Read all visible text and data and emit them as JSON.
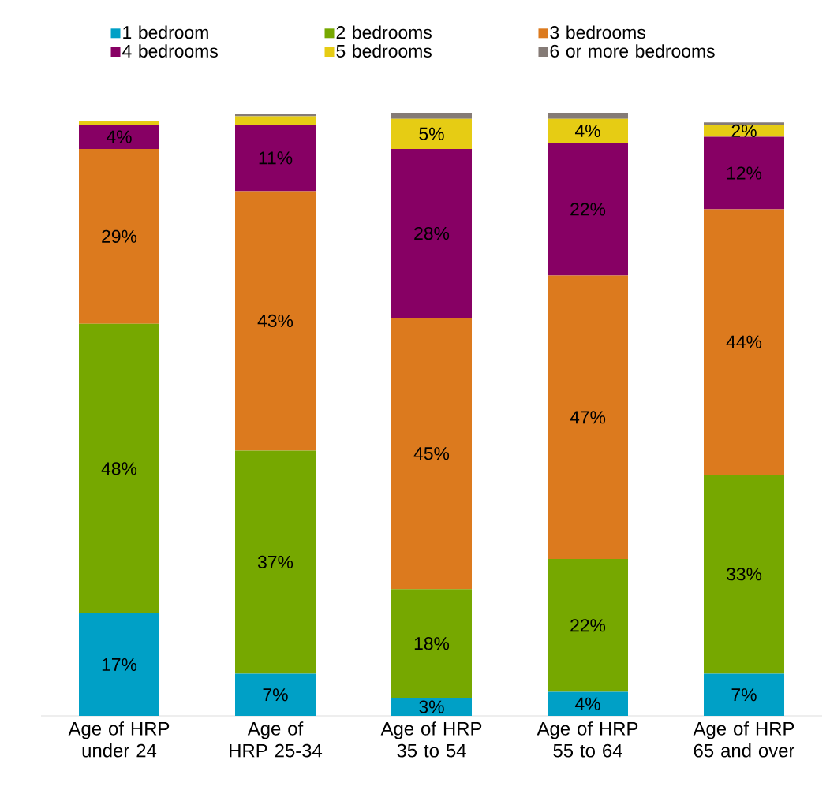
{
  "chart_data": {
    "type": "bar",
    "stacked": true,
    "legend": "top",
    "categories": [
      "Age of HRP under 24",
      "Age of HRP 25-34",
      "Age of HRP 35 to 54",
      "Age of HRP 55 to 64",
      "Age of HRP 65 and over"
    ],
    "ylim": [
      0,
      100
    ],
    "series": [
      {
        "name": "1 bedroom",
        "color": "#00a0c6",
        "values": [
          17,
          7,
          3,
          4,
          7
        ],
        "value_labels": [
          "17%",
          "7%",
          "3%",
          "4%",
          "7%"
        ]
      },
      {
        "name": "2 bedrooms",
        "color": "#76a800",
        "values": [
          48,
          37,
          18,
          22,
          33
        ],
        "value_labels": [
          "48%",
          "37%",
          "18%",
          "22%",
          "33%"
        ]
      },
      {
        "name": "3 bedrooms",
        "color": "#dc7a1e",
        "values": [
          29,
          43,
          45,
          47,
          44
        ],
        "value_labels": [
          "29%",
          "43%",
          "45%",
          "47%",
          "44%"
        ]
      },
      {
        "name": "4 bedrooms",
        "color": "#870064",
        "values": [
          4,
          11,
          28,
          22,
          12
        ],
        "value_labels": [
          "4%",
          "11%",
          "28%",
          "22%",
          "12%"
        ]
      },
      {
        "name": "5 bedrooms",
        "color": "#e6cc14",
        "values": [
          0.6,
          1.4,
          5,
          4,
          2
        ],
        "value_labels": [
          null,
          null,
          "5%",
          "4%",
          "2%"
        ]
      },
      {
        "name": "6 or more bedrooms",
        "color": "#857b76",
        "values": [
          0,
          0.4,
          1,
          1,
          0.4
        ],
        "value_labels": [
          null,
          null,
          null,
          null,
          null
        ]
      }
    ]
  }
}
